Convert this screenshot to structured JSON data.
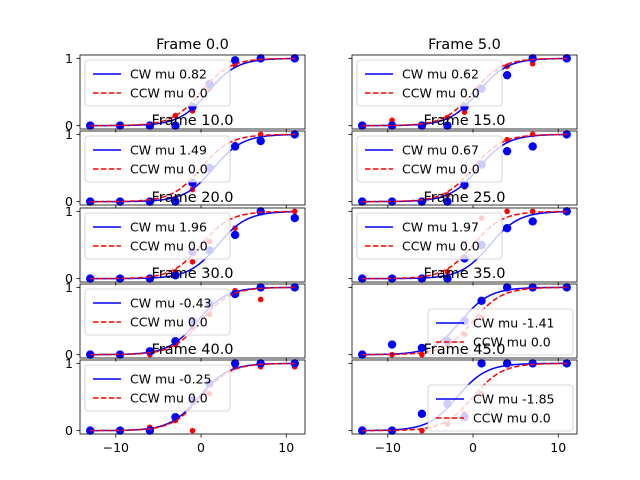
{
  "chart_data": {
    "type": "scatter",
    "layout": "5 rows x 2 columns, shared x and y axes",
    "xlim": [
      -14.2,
      12.2
    ],
    "ylim": [
      -0.05,
      1.05
    ],
    "xticks": [
      -10,
      0,
      10
    ],
    "yticks": [
      0,
      1
    ],
    "tick_labels_x": [
      "−10",
      "0",
      "10"
    ],
    "tick_labels_y": [
      "0",
      "1"
    ],
    "legend_placement": "upper-left (lower-right in Frame 35.0 and Frame 45.0)",
    "colors": {
      "cw": "#0000ff",
      "ccw": "#ff0000"
    },
    "x": [
      -13,
      -9.5,
      -6,
      -3,
      -1,
      1,
      4,
      7,
      11
    ],
    "panels": [
      {
        "title": "Frame 0.0",
        "cw_label": "CW mu 0.82",
        "ccw_label": "CCW mu 0.0",
        "cw_mu": 0.82,
        "ccw_mu": 0.0,
        "legend": "upper-left",
        "cw_points": [
          0,
          0,
          0,
          0,
          0.28,
          0.62,
          0.97,
          1.0,
          1.0
        ],
        "ccw_points": [
          0,
          0,
          0,
          0.15,
          0.22,
          0.55,
          0.9,
          1.0,
          1.0
        ]
      },
      {
        "title": "Frame 5.0",
        "cw_label": "CW mu 0.62",
        "ccw_label": "CCW mu 0.0",
        "cw_mu": 0.62,
        "ccw_mu": 0.0,
        "legend": "upper-left",
        "cw_points": [
          0,
          0,
          0,
          0,
          0.28,
          0.55,
          0.75,
          1.0,
          1.0
        ],
        "ccw_points": [
          0,
          0.08,
          0.02,
          0.12,
          0.2,
          0.55,
          0.88,
          0.92,
          1.0
        ]
      },
      {
        "title": "Frame 10.0",
        "cw_label": "CW mu 1.49",
        "ccw_label": "CCW mu 0.0",
        "cw_mu": 1.49,
        "ccw_mu": 0.0,
        "legend": "upper-left",
        "cw_points": [
          0,
          0,
          0,
          0,
          0.28,
          0.5,
          0.82,
          0.9,
          1.0
        ],
        "ccw_points": [
          0,
          0,
          0,
          0.05,
          0.18,
          0.5,
          0.85,
          1.0,
          1.0
        ]
      },
      {
        "title": "Frame 15.0",
        "cw_label": "CW mu 0.67",
        "ccw_label": "CCW mu 0.0",
        "cw_mu": 0.67,
        "ccw_mu": 0.0,
        "legend": "upper-left",
        "cw_points": [
          0,
          0,
          0,
          0,
          0.25,
          0.55,
          0.75,
          0.82,
          1.0
        ],
        "ccw_points": [
          0,
          0,
          0,
          0.1,
          0.22,
          0.55,
          0.92,
          1.0,
          1.0
        ]
      },
      {
        "title": "Frame 20.0",
        "cw_label": "CW mu 1.96",
        "ccw_label": "CCW mu 0.0",
        "cw_mu": 1.96,
        "ccw_mu": 0.0,
        "legend": "upper-left",
        "cw_points": [
          0,
          0,
          0,
          0.05,
          0.4,
          0.42,
          0.65,
          1.0,
          0.9
        ],
        "ccw_points": [
          0,
          0,
          0,
          0.1,
          0.25,
          0.55,
          0.75,
          1.0,
          1.0
        ]
      },
      {
        "title": "Frame 25.0",
        "cw_label": "CW mu 1.97",
        "ccw_label": "CCW mu 0.0",
        "cw_mu": 1.97,
        "ccw_mu": 0.0,
        "legend": "upper-left",
        "cw_points": [
          0,
          0,
          0,
          0,
          0.3,
          0.5,
          0.75,
          0.85,
          1.0
        ],
        "ccw_points": [
          0,
          0,
          0,
          0.1,
          0.28,
          0.9,
          1.0,
          1.0,
          1.0
        ]
      },
      {
        "title": "Frame 30.0",
        "cw_label": "CW mu -0.43",
        "ccw_label": "CCW mu 0.0",
        "cw_mu": -0.43,
        "ccw_mu": 0.0,
        "legend": "upper-left",
        "cw_points": [
          0,
          0,
          0.05,
          0.2,
          0.5,
          0.75,
          0.9,
          1.0,
          1.0
        ],
        "ccw_points": [
          0,
          0,
          0,
          0.15,
          0.4,
          0.6,
          0.95,
          0.82,
          1.0
        ]
      },
      {
        "title": "Frame 35.0",
        "cw_label": "CW mu -1.41",
        "ccw_label": "CCW mu 0.0",
        "cw_mu": -1.41,
        "ccw_mu": 0.0,
        "legend": "lower-right",
        "cw_points": [
          0,
          0.15,
          0.1,
          0.2,
          0.5,
          0.8,
          1.0,
          1.0,
          1.0
        ],
        "ccw_points": [
          0,
          0,
          0,
          0.15,
          0.3,
          0.55,
          1.0,
          1.0,
          1.0
        ]
      },
      {
        "title": "Frame 40.0",
        "cw_label": "CW mu -0.25",
        "ccw_label": "CCW mu 0.0",
        "cw_mu": -0.25,
        "ccw_mu": 0.0,
        "legend": "upper-left",
        "cw_points": [
          0,
          0,
          0,
          0.2,
          0.45,
          0.7,
          1.0,
          1.0,
          1.0
        ],
        "ccw_points": [
          0,
          0,
          0.05,
          0.15,
          0.0,
          0.55,
          0.95,
          0.95,
          0.95
        ]
      },
      {
        "title": "Frame 45.0",
        "cw_label": "CW mu -1.85",
        "ccw_label": "CCW mu 0.0",
        "cw_mu": -1.85,
        "ccw_mu": 0.0,
        "legend": "lower-right",
        "cw_points": [
          0,
          0,
          0.25,
          0.4,
          0.2,
          1.0,
          1.0,
          1.0,
          1.0
        ],
        "ccw_points": [
          0,
          0,
          0,
          0.1,
          0.25,
          0.55,
          1.0,
          1.0,
          1.0
        ]
      }
    ]
  }
}
